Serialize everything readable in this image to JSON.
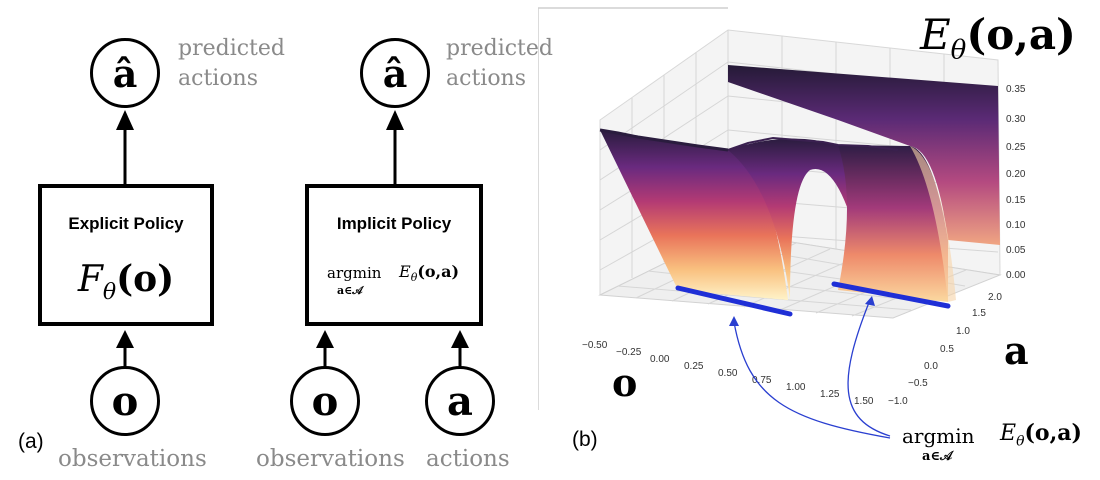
{
  "panel_a": {
    "label": "(a)",
    "explicit": {
      "output_symbol": "â",
      "output_caption_1": "predicted",
      "output_caption_2": "actions",
      "box_title": "Explicit Policy",
      "box_formula_base": "F",
      "box_formula_sub": "θ",
      "box_formula_arg": "(o)",
      "input_symbol": "o",
      "input_caption": "observations"
    },
    "implicit": {
      "output_symbol": "â",
      "output_caption_1": "predicted",
      "output_caption_2": "actions",
      "box_title": "Implicit Policy",
      "argmin": "argmin",
      "argmin_sub": "a∈𝒜",
      "energy_base": "E",
      "energy_sub": "θ",
      "energy_arg": "(o,a)",
      "input_obs_symbol": "o",
      "input_obs_caption": "observations",
      "input_act_symbol": "a",
      "input_act_caption": "actions"
    }
  },
  "panel_b": {
    "label": "(b)",
    "title_base": "E",
    "title_sub": "θ",
    "title_arg": "(o,a)",
    "x_axis_label": "o",
    "y_axis_label": "a",
    "x_ticks": [
      "−0.50",
      "−0.25",
      "0.00",
      "0.25",
      "0.50",
      "0.75",
      "1.00",
      "1.25",
      "1.50"
    ],
    "y_ticks": [
      "−1.0",
      "−0.5",
      "0.0",
      "0.5",
      "1.0",
      "1.5",
      "2.0"
    ],
    "z_ticks": [
      "0.00",
      "0.05",
      "0.10",
      "0.15",
      "0.20",
      "0.25",
      "0.30",
      "0.35"
    ],
    "annotation_argmin": "argmin",
    "annotation_sub": "a∈𝒜",
    "annotation_energy_base": "E",
    "annotation_energy_sub": "θ",
    "annotation_energy_arg": "(o,a)",
    "minima_color": "#1f2fd6",
    "arrow_color": "#2a3fd0"
  }
}
